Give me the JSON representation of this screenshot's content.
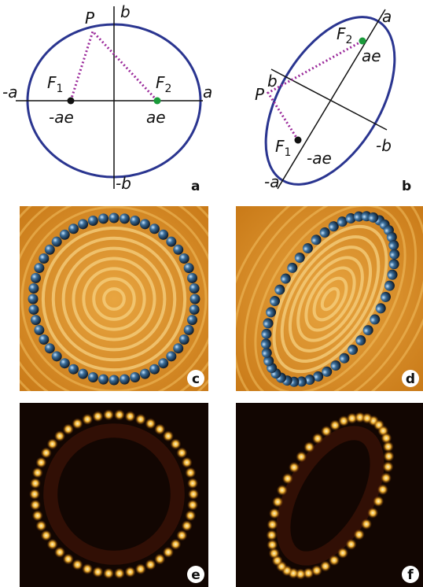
{
  "panel_a": {
    "P": "P",
    "b": "b",
    "neg_a": "-a",
    "F1": {
      "symbol": "F",
      "subscript": "1"
    },
    "neg_ae": "-ae",
    "F2": {
      "symbol": "F",
      "subscript": "2"
    },
    "a": "a",
    "ae": "ae",
    "neg_b": "-b",
    "label": "a"
  },
  "panel_b": {
    "a": "a",
    "F2": {
      "symbol": "F",
      "subscript": "2"
    },
    "ae": "ae",
    "b": "b",
    "P": "P",
    "F1": {
      "symbol": "F",
      "subscript": "1"
    },
    "neg_ae": "-ae",
    "neg_b": "-b",
    "neg_a": "-a",
    "label": "b"
  },
  "panel_c": {
    "label": "c"
  },
  "panel_d": {
    "label": "d"
  },
  "panel_e": {
    "label": "e"
  },
  "panel_f": {
    "label": "f"
  }
}
